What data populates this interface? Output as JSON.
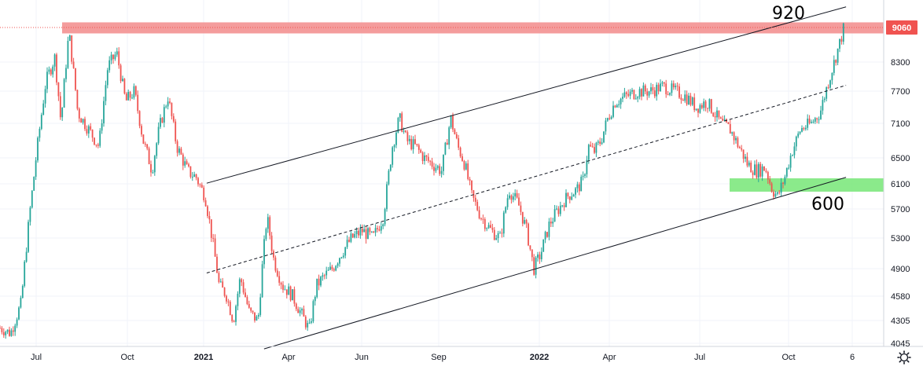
{
  "chart_data": {
    "type": "candlestick",
    "title": "",
    "x_tick_labels": [
      "Jul",
      "Oct",
      "2021",
      "Apr",
      "Jun",
      "Sep",
      "2022",
      "Apr",
      "Jul",
      "Oct",
      "6"
    ],
    "x_tick_bold": [
      false,
      false,
      true,
      false,
      false,
      false,
      true,
      false,
      false,
      false,
      false
    ],
    "y_tick_labels": [
      "8300",
      "7700",
      "7100",
      "6500",
      "6100",
      "5700",
      "5300",
      "4900",
      "4580",
      "4305",
      "4045"
    ],
    "y_ticks": [
      8300,
      7700,
      7100,
      6500,
      6100,
      5700,
      5300,
      4900,
      4580,
      4305,
      4045
    ],
    "current_price": 9060,
    "current_price_label": "9060",
    "annotations": [
      {
        "text": "920",
        "near": "upper-right channel line"
      },
      {
        "text": "600",
        "near": "lower-right green support zone"
      }
    ],
    "resistance_zone": {
      "from": 8930,
      "to": 9180,
      "color": "#f28b8b"
    },
    "support_zone": {
      "from": 6000,
      "to": 6180,
      "color": "#7ee87e"
    },
    "channel_lines": [
      {
        "name": "upper",
        "style": "solid",
        "points": [
          [
            0.2339,
            6110
          ],
          [
            0.9574,
            9540
          ]
        ]
      },
      {
        "name": "middle",
        "style": "dashed",
        "points": [
          [
            0.2339,
            4850
          ],
          [
            0.9574,
            7820
          ]
        ]
      },
      {
        "name": "lower",
        "style": "solid",
        "points": [
          [
            0.2988,
            4000
          ],
          [
            0.9574,
            6200
          ]
        ]
      }
    ],
    "price_path": [
      [
        0.0,
        4220
      ],
      [
        0.012,
        4160
      ],
      [
        0.024,
        4500
      ],
      [
        0.035,
        5800
      ],
      [
        0.044,
        6900
      ],
      [
        0.052,
        7900
      ],
      [
        0.062,
        8400
      ],
      [
        0.069,
        7100
      ],
      [
        0.078,
        8950
      ],
      [
        0.088,
        7300
      ],
      [
        0.1,
        7000
      ],
      [
        0.112,
        6700
      ],
      [
        0.122,
        8200
      ],
      [
        0.132,
        8500
      ],
      [
        0.142,
        7500
      ],
      [
        0.152,
        7700
      ],
      [
        0.162,
        6800
      ],
      [
        0.172,
        6300
      ],
      [
        0.18,
        7000
      ],
      [
        0.19,
        7600
      ],
      [
        0.2,
        6700
      ],
      [
        0.212,
        6300
      ],
      [
        0.222,
        6200
      ],
      [
        0.232,
        5900
      ],
      [
        0.24,
        5300
      ],
      [
        0.248,
        4700
      ],
      [
        0.256,
        4600
      ],
      [
        0.264,
        4300
      ],
      [
        0.272,
        4800
      ],
      [
        0.282,
        4400
      ],
      [
        0.292,
        4300
      ],
      [
        0.302,
        5600
      ],
      [
        0.31,
        5000
      ],
      [
        0.32,
        4700
      ],
      [
        0.33,
        4600
      ],
      [
        0.34,
        4400
      ],
      [
        0.35,
        4200
      ],
      [
        0.358,
        4700
      ],
      [
        0.366,
        4800
      ],
      [
        0.376,
        4900
      ],
      [
        0.386,
        5100
      ],
      [
        0.398,
        5300
      ],
      [
        0.41,
        5400
      ],
      [
        0.422,
        5300
      ],
      [
        0.434,
        5600
      ],
      [
        0.444,
        6700
      ],
      [
        0.452,
        7200
      ],
      [
        0.46,
        6800
      ],
      [
        0.47,
        6700
      ],
      [
        0.48,
        6500
      ],
      [
        0.49,
        6400
      ],
      [
        0.5,
        6300
      ],
      [
        0.51,
        7200
      ],
      [
        0.518,
        6700
      ],
      [
        0.526,
        6400
      ],
      [
        0.534,
        5900
      ],
      [
        0.544,
        5600
      ],
      [
        0.556,
        5400
      ],
      [
        0.566,
        5300
      ],
      [
        0.576,
        6000
      ],
      [
        0.586,
        5800
      ],
      [
        0.596,
        5400
      ],
      [
        0.604,
        4900
      ],
      [
        0.612,
        5100
      ],
      [
        0.622,
        5500
      ],
      [
        0.632,
        5700
      ],
      [
        0.642,
        5900
      ],
      [
        0.652,
        6000
      ],
      [
        0.66,
        6150
      ],
      [
        0.666,
        6700
      ],
      [
        0.672,
        6600
      ],
      [
        0.68,
        6800
      ],
      [
        0.688,
        7200
      ],
      [
        0.696,
        7500
      ],
      [
        0.708,
        7600
      ],
      [
        0.722,
        7700
      ],
      [
        0.736,
        7700
      ],
      [
        0.75,
        7800
      ],
      [
        0.764,
        7700
      ],
      [
        0.776,
        7600
      ],
      [
        0.788,
        7400
      ],
      [
        0.8,
        7500
      ],
      [
        0.808,
        7300
      ],
      [
        0.816,
        7100
      ],
      [
        0.826,
        7000
      ],
      [
        0.836,
        6700
      ],
      [
        0.846,
        6400
      ],
      [
        0.856,
        6300
      ],
      [
        0.866,
        6350
      ],
      [
        0.874,
        6000
      ],
      [
        0.88,
        5900
      ],
      [
        0.888,
        6200
      ],
      [
        0.896,
        6600
      ],
      [
        0.906,
        7000
      ],
      [
        0.918,
        7100
      ],
      [
        0.928,
        7300
      ],
      [
        0.936,
        7800
      ],
      [
        0.944,
        8300
      ],
      [
        0.95,
        8700
      ],
      [
        0.955,
        9060
      ]
    ]
  }
}
